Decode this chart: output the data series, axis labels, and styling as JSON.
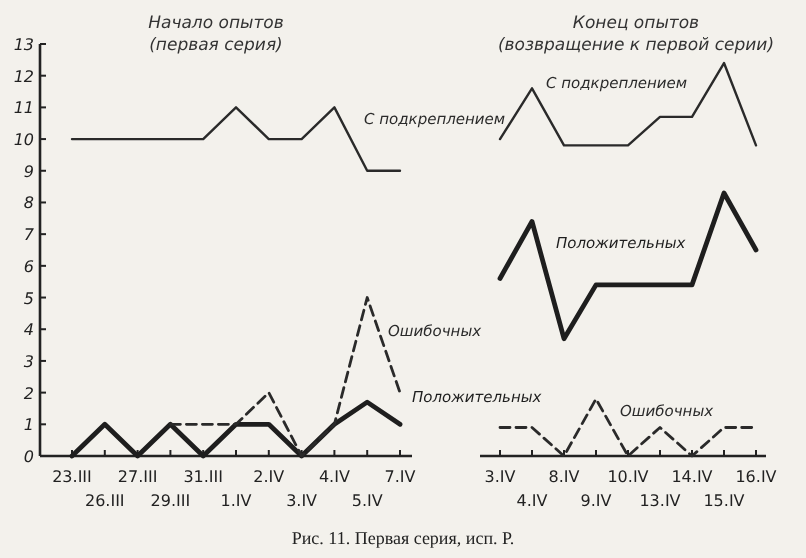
{
  "chart_data": [
    {
      "type": "line",
      "title": "Начало опытов (первая серия)",
      "categories": [
        "23.III",
        "26.III",
        "27.III",
        "29.III",
        "31.III",
        "1.IV",
        "2.IV",
        "3.IV",
        "4.IV",
        "5.IV",
        "7.IV"
      ],
      "series": [
        {
          "name": "С подкреплением",
          "color": "#2a2a2a",
          "line_style": "solid",
          "values": [
            10,
            10,
            10,
            10,
            10,
            11,
            10,
            10,
            11,
            9,
            9
          ]
        },
        {
          "name": "Положительных",
          "color": "#1e1e1e",
          "line_style": "solid",
          "values": [
            0,
            1,
            0,
            1,
            0,
            1,
            1,
            0,
            1,
            1.7,
            1
          ]
        },
        {
          "name": "Ошибочных",
          "color": "#2a2a2a",
          "line_style": "dashed",
          "values": [
            null,
            null,
            null,
            1,
            1,
            1,
            2,
            0,
            1,
            5,
            2
          ]
        }
      ],
      "ylim": [
        0,
        13
      ],
      "yticks": [
        0,
        1,
        2,
        3,
        4,
        5,
        6,
        7,
        8,
        9,
        10,
        11,
        12,
        13
      ],
      "grid": false,
      "marker": "none",
      "annotations": [
        "Рис. 11. Первая серия, исп. Р."
      ]
    },
    {
      "type": "line",
      "title": "Конец опытов (возвращение к первой серии)",
      "categories": [
        "3.IV",
        "4.IV",
        "8.IV",
        "9.IV",
        "10.IV",
        "13.IV",
        "14.IV",
        "15.IV",
        "16.IV"
      ],
      "series": [
        {
          "name": "С подкреплением",
          "color": "#2a2a2a",
          "line_style": "solid",
          "values": [
            10,
            11.6,
            9.8,
            9.8,
            9.8,
            10.7,
            10.7,
            12.4,
            9.8
          ]
        },
        {
          "name": "Положительных",
          "color": "#1e1e1e",
          "line_style": "solid",
          "values": [
            5.6,
            7.4,
            3.7,
            5.4,
            5.4,
            5.4,
            5.4,
            8.3,
            6.5
          ]
        },
        {
          "name": "Ошибочных",
          "color": "#2a2a2a",
          "line_style": "dashed",
          "values": [
            0.9,
            0.9,
            0,
            1.8,
            0,
            0.9,
            0,
            0.9,
            0.9
          ]
        }
      ],
      "ylim": [
        0,
        13
      ],
      "tick_labels": "x",
      "grid": false,
      "marker": "none"
    }
  ]
}
